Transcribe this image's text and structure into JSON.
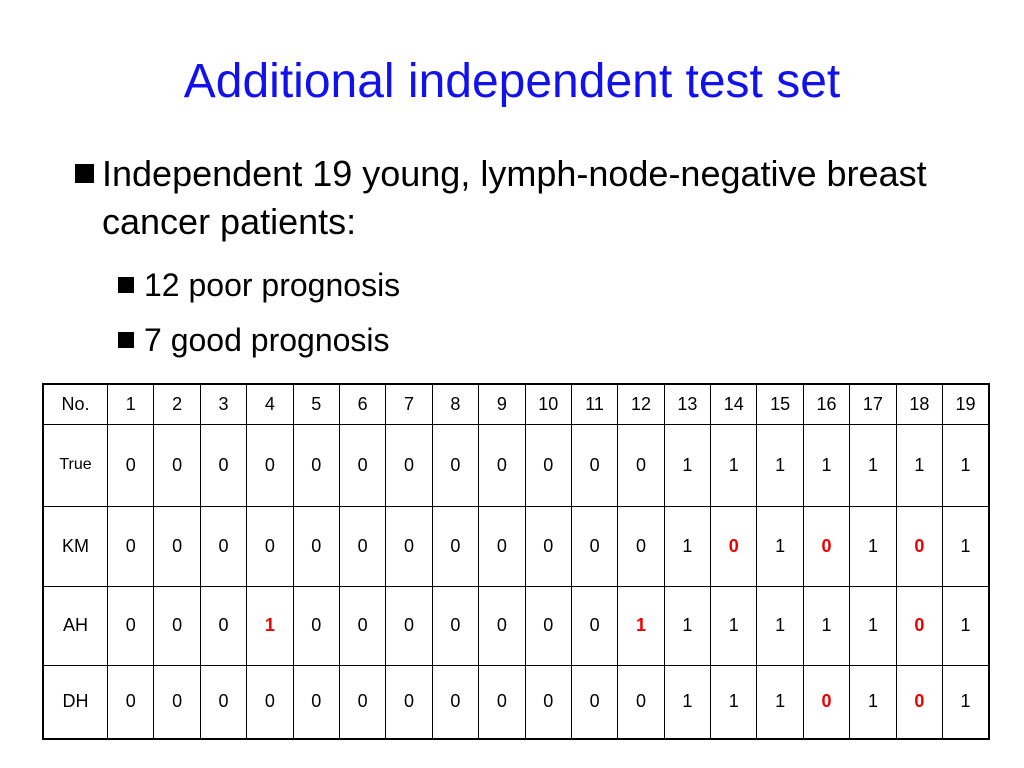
{
  "slide": {
    "title": "Additional independent test set",
    "bullet_main": "Independent 19 young, lymph-node-negative breast cancer patients:",
    "sub_bullets": [
      "12 poor prognosis",
      "7 good prognosis"
    ],
    "colors": {
      "title": "#1111ee",
      "mismatch": "#ee0000"
    }
  },
  "table": {
    "header_label": "No.",
    "columns": [
      "1",
      "2",
      "3",
      "4",
      "5",
      "6",
      "7",
      "8",
      "9",
      "10",
      "11",
      "12",
      "13",
      "14",
      "15",
      "16",
      "17",
      "18",
      "19"
    ],
    "rows": [
      {
        "label": "True",
        "values": [
          "0",
          "0",
          "0",
          "0",
          "0",
          "0",
          "0",
          "0",
          "0",
          "0",
          "0",
          "0",
          "1",
          "1",
          "1",
          "1",
          "1",
          "1",
          "1"
        ],
        "mismatch": []
      },
      {
        "label": "KM",
        "values": [
          "0",
          "0",
          "0",
          "0",
          "0",
          "0",
          "0",
          "0",
          "0",
          "0",
          "0",
          "0",
          "1",
          "0",
          "1",
          "0",
          "1",
          "0",
          "1"
        ],
        "mismatch": [
          13,
          15,
          17
        ]
      },
      {
        "label": "AH",
        "values": [
          "0",
          "0",
          "0",
          "1",
          "0",
          "0",
          "0",
          "0",
          "0",
          "0",
          "0",
          "1",
          "1",
          "1",
          "1",
          "1",
          "1",
          "0",
          "1"
        ],
        "mismatch": [
          3,
          11,
          17
        ]
      },
      {
        "label": "DH",
        "values": [
          "0",
          "0",
          "0",
          "0",
          "0",
          "0",
          "0",
          "0",
          "0",
          "0",
          "0",
          "0",
          "1",
          "1",
          "1",
          "0",
          "1",
          "0",
          "1"
        ],
        "mismatch": [
          15,
          17
        ]
      }
    ]
  }
}
